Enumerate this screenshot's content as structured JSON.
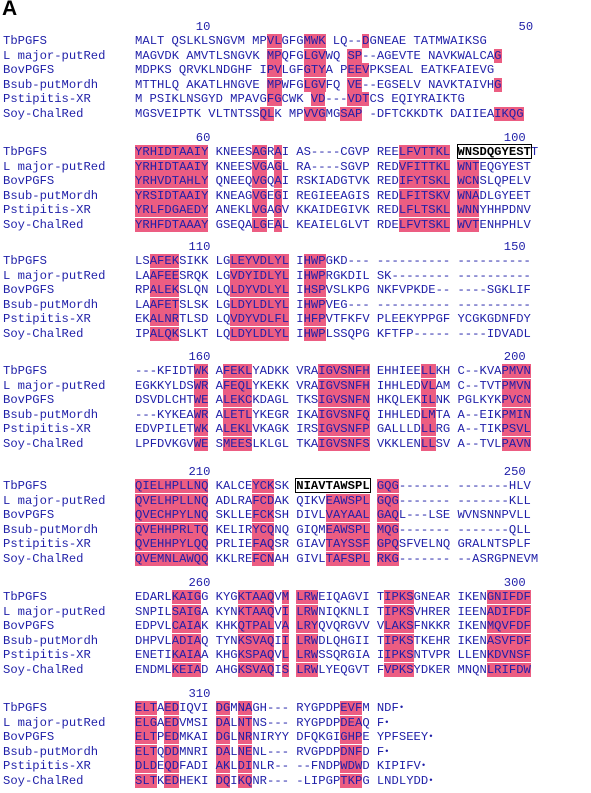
{
  "panel_label": "A",
  "names": [
    "TbPGFS",
    "L major-putRed",
    "BovPGFS",
    "Bsub-putMordh",
    "Pstipitis-XR",
    "Soy-ChalRed"
  ],
  "blocks": [
    {
      "ruler": [
        {
          "text": "10",
          "col": 9
        },
        {
          "text": "50",
          "col": 49
        }
      ],
      "rows": [
        "MALT QSLKLSNGVM MPVLGFGMWK LQ--DGNEAE TATMWAIKSG",
        "MAGVDK AMVTLSNGVK MPQFGLGVWQ SP--AGEVTE NAVKWALCAG",
        "MDPKS QRVKLNDGHF IPVLGFGTYA PEEVPKSEAL EATKFAIEVG",
        "MTTHLQ AKATLHNGVE MPWFGLGVFQ VE--EGSELV NAVKTAIVHG",
        "M PSIKLNSGYD MPAVGFGCWK VD---VDTCS EQIYRAIKTG",
        "MGSVEIPTK VLTNTSSQLK MPVVGMGSAP -DFTCKKDTK DAIIEAIKQG"
      ],
      "highlights": [
        [
          16,
          17,
          21,
          22,
          23,
          26,
          27,
          28,
          45,
          46,
          47,
          48
        ],
        [
          16,
          17,
          21,
          22,
          23,
          26,
          27,
          28,
          45,
          46,
          47,
          48
        ],
        [
          16,
          17,
          21,
          22,
          23,
          26,
          27,
          28,
          45,
          46,
          47,
          48
        ],
        [
          16,
          17,
          21,
          22,
          23,
          26,
          27,
          28,
          45,
          46,
          47,
          48
        ],
        [
          16,
          17,
          21,
          22,
          23,
          26,
          27,
          28,
          45,
          46,
          47,
          48
        ],
        [
          16,
          17,
          21,
          22,
          23,
          26,
          27,
          28,
          45,
          46,
          47,
          48
        ]
      ]
    },
    {
      "ruler": [
        {
          "text": "60",
          "col": 9
        },
        {
          "text": "100",
          "col": 48
        }
      ],
      "rows": [
        "YRHIDTAAIY KNEESAGRAI AS----CGVP REELFVTTKL WNSDQGYESTT",
        "YRHIDTAAIY KNEESVGAGL RA----SGVP REDVFITTKL WNTEQGYEST",
        "YRHVDTAHLY QNEEQVGQAI RSKIADGTVK REDIFYTSKL WCNSLQPELV",
        "YRSIDTAAIY KNEAGVGEGI REGIEEAGIS REDLFITSKV WNADLGYEET",
        "YRLFDGAEDY ANEKLVGAGV KKAIDEGIVK REDLFLTSKL WNNYHHPDNV",
        "YRHFDTAAAY GSEQALGEAL KEAIELGLVT RDELFVTSKL WVTENHPHLV"
      ],
      "highlights": [
        [
          0,
          1,
          2,
          3,
          4,
          5,
          6,
          7,
          8,
          9,
          15,
          16,
          18,
          33,
          34,
          35,
          36,
          37,
          38,
          39,
          40,
          41,
          42
        ],
        [
          0,
          1,
          2,
          3,
          4,
          5,
          6,
          7,
          8,
          9,
          15,
          16,
          18,
          33,
          34,
          35,
          36,
          37,
          38,
          39,
          40,
          41,
          42
        ],
        [
          0,
          1,
          2,
          3,
          4,
          5,
          6,
          7,
          8,
          9,
          15,
          16,
          18,
          33,
          34,
          35,
          36,
          37,
          38,
          39,
          40,
          41,
          42
        ],
        [
          0,
          1,
          2,
          3,
          4,
          5,
          6,
          7,
          8,
          9,
          15,
          16,
          18,
          33,
          34,
          35,
          36,
          37,
          38,
          39,
          40,
          41,
          42
        ],
        [
          0,
          1,
          2,
          3,
          4,
          5,
          6,
          7,
          8,
          9,
          15,
          16,
          18,
          33,
          34,
          35,
          36,
          37,
          38,
          39,
          40,
          41,
          42
        ],
        [
          0,
          1,
          2,
          3,
          4,
          5,
          6,
          7,
          8,
          9,
          15,
          16,
          18,
          33,
          34,
          35,
          36,
          37,
          38,
          39,
          40,
          41,
          42
        ]
      ]
    },
    {
      "ruler": [
        {
          "text": "110",
          "col": 9
        },
        {
          "text": "150",
          "col": 48
        }
      ],
      "rows": [
        "LSAFEKSIKK LGLEYVDLYL IHWPGKD--- ---------- ----------",
        "LAAFEESRQK LGVDYIDLYL IHWPRGKDIL SK-------- ----------",
        "RPALEKSLQN LQLDYVDLYL IHSPVSLKPG NKFVPKDE-- ----SGKLIF",
        "LAAFETSLSK LGLDYLDLYL IHWPVEG--- ---------- ----------",
        "EKALNRTLSD LQVDYVDLFL IHFPVTFKFV PLEEKYPPGF YCGKGDNFDY",
        "IPALQKSLKT LQLDYLDLYL IHWPLSSQPG KFTFP----- ----IDVADL"
      ],
      "highlights": [
        [
          2,
          3,
          4,
          5,
          12,
          13,
          14,
          15,
          16,
          17,
          18,
          19,
          21,
          22,
          23
        ],
        [
          2,
          3,
          4,
          5,
          12,
          13,
          14,
          15,
          16,
          17,
          18,
          19,
          21,
          22,
          23
        ],
        [
          2,
          3,
          4,
          5,
          12,
          13,
          14,
          15,
          16,
          17,
          18,
          19,
          21,
          22,
          23
        ],
        [
          2,
          3,
          4,
          5,
          12,
          13,
          14,
          15,
          16,
          17,
          18,
          19,
          21,
          22,
          23
        ],
        [
          2,
          3,
          4,
          5,
          12,
          13,
          14,
          15,
          16,
          17,
          18,
          19,
          21,
          22,
          23
        ],
        [
          2,
          3,
          4,
          5,
          12,
          13,
          14,
          15,
          16,
          17,
          18,
          19,
          21,
          22,
          23
        ]
      ]
    },
    {
      "ruler": [
        {
          "text": "160",
          "col": 9
        },
        {
          "text": "200",
          "col": 48
        }
      ],
      "rows": [
        "---KFIDTWK AFEKLYADKK VRAIGVSNFH EHHIEELLKH C--KVAPMVN",
        "EGKKYLDSWR AFEQLYKEKK VRAIGVSNFH IHHLEDVLAM C--TVTPMVN",
        "DSVDLCHTWE ALEKCKDAGL TKSIGVSNFN HKQLEKILNK PGLKYKPVCN",
        "---KYKEAWR ALETLYKEGR IKAIGVSNFQ IHHLEDLMTA A--EIKPMIN",
        "EDVPILETWK ALEKLVKAGK IRSIGVSNFP GALLLDLLRG A--TIKPSVL",
        "LPFDVKGVWE SMEESLKLGL TKAIGVSNFS VKKLENLLSV A--TVLPAVN"
      ],
      "highlights": [
        [
          8,
          9,
          11,
          12,
          13,
          14,
          23,
          24,
          25,
          26,
          27,
          28,
          29,
          36,
          37,
          46,
          47,
          48,
          49
        ],
        [
          8,
          9,
          11,
          12,
          13,
          14,
          23,
          24,
          25,
          26,
          27,
          28,
          29,
          36,
          37,
          46,
          47,
          48,
          49
        ],
        [
          8,
          9,
          11,
          12,
          13,
          14,
          23,
          24,
          25,
          26,
          27,
          28,
          29,
          36,
          37,
          46,
          47,
          48,
          49
        ],
        [
          8,
          9,
          11,
          12,
          13,
          14,
          23,
          24,
          25,
          26,
          27,
          28,
          29,
          36,
          37,
          46,
          47,
          48,
          49
        ],
        [
          8,
          9,
          11,
          12,
          13,
          14,
          23,
          24,
          25,
          26,
          27,
          28,
          29,
          36,
          37,
          46,
          47,
          48,
          49
        ],
        [
          8,
          9,
          11,
          12,
          13,
          14,
          23,
          24,
          25,
          26,
          27,
          28,
          29,
          36,
          37,
          46,
          47,
          48,
          49
        ]
      ]
    },
    {
      "ruler": [
        {
          "text": "210",
          "col": 9
        },
        {
          "text": "250",
          "col": 48
        }
      ],
      "rows": [
        "QIELHPLLNQ KALCEYCKSK NIAVTAWSPL GQG------- -------HLV",
        "QVELHPLLNQ ADLRAFCDAK QIKVEAWSPL GQG------- -------KLL",
        "QVECHPYLNQ SKLLEFCKSH DIVLVAYAAL GAQL---LSE WVNSNNPVLL",
        "QVEHHPRLTQ KELIRYCQNQ GIQMEAWSPL MQG------- -------QLL",
        "QVEHHPYLQQ PRLIEFAQSR GIAVTAYSSF GPQSFVELNQ GRALNTSPLF",
        "QVEMNLAWQQ KKLREFCNAH GIVLTAFSPL RKG------- --ASRGPNEVM"
      ],
      "highlights": [
        [
          0,
          1,
          2,
          3,
          4,
          5,
          6,
          7,
          8,
          9,
          15,
          16,
          17,
          24,
          25,
          26,
          27,
          28,
          29,
          30,
          31,
          32
        ],
        [
          0,
          1,
          2,
          3,
          4,
          5,
          6,
          7,
          8,
          9,
          15,
          16,
          17,
          24,
          25,
          26,
          27,
          28,
          29,
          30,
          31,
          32
        ],
        [
          0,
          1,
          2,
          3,
          4,
          5,
          6,
          7,
          8,
          9,
          15,
          16,
          17,
          24,
          25,
          26,
          27,
          28,
          29,
          30,
          31,
          32
        ],
        [
          0,
          1,
          2,
          3,
          4,
          5,
          6,
          7,
          8,
          9,
          15,
          16,
          17,
          24,
          25,
          26,
          27,
          28,
          29,
          30,
          31,
          32
        ],
        [
          0,
          1,
          2,
          3,
          4,
          5,
          6,
          7,
          8,
          9,
          15,
          16,
          17,
          24,
          25,
          26,
          27,
          28,
          29,
          30,
          31,
          32
        ],
        [
          0,
          1,
          2,
          3,
          4,
          5,
          6,
          7,
          8,
          9,
          15,
          16,
          17,
          24,
          25,
          26,
          27,
          28,
          29,
          30,
          31,
          32
        ]
      ]
    },
    {
      "ruler": [
        {
          "text": "260",
          "col": 9
        },
        {
          "text": "300",
          "col": 48
        }
      ],
      "rows": [
        "EDARLKAIGG KYGKTAAQVM LRWEIQAGVI TIPKSGNEAR IKENGNIFDF",
        "SNPILSAIGA KYNKTAAQVI LRWNIQKNLI TIPKSVHRER IEENADIFDF",
        "EDPVLCAIAK KHKQTPALVA LRYQVQRGVV VLAKSFNKKR IKENMQVFDF",
        "DHPVLADIAQ TYNKSVAQII LRWDLQHGII TIPKSTKEHR IKENASVFDF",
        "ENETIKAIAA KHGKSPAQVL LRWSSQRGIA IIPKSNTVPR LLENKDVNSF",
        "ENDMLKEIAD AHGKSVAQIS LRWLYEQGVT FVPKSYDKER MNQNLRIFDW"
      ],
      "highlights": [
        [
          5,
          6,
          7,
          8,
          13,
          14,
          15,
          16,
          17,
          19,
          20,
          21,
          22,
          31,
          32,
          33,
          34,
          44,
          45,
          46,
          47,
          48,
          49
        ],
        [
          5,
          6,
          7,
          8,
          13,
          14,
          15,
          16,
          17,
          19,
          20,
          21,
          22,
          31,
          32,
          33,
          34,
          44,
          45,
          46,
          47,
          48,
          49
        ],
        [
          5,
          6,
          7,
          8,
          13,
          14,
          15,
          16,
          17,
          19,
          20,
          21,
          22,
          31,
          32,
          33,
          34,
          44,
          45,
          46,
          47,
          48,
          49
        ],
        [
          5,
          6,
          7,
          8,
          13,
          14,
          15,
          16,
          17,
          19,
          20,
          21,
          22,
          31,
          32,
          33,
          34,
          44,
          45,
          46,
          47,
          48,
          49
        ],
        [
          5,
          6,
          7,
          8,
          13,
          14,
          15,
          16,
          17,
          19,
          20,
          21,
          22,
          31,
          32,
          33,
          34,
          44,
          45,
          46,
          47,
          48,
          49
        ],
        [
          5,
          6,
          7,
          8,
          13,
          14,
          15,
          16,
          17,
          19,
          20,
          21,
          22,
          31,
          32,
          33,
          34,
          44,
          45,
          46,
          47,
          48,
          49
        ]
      ]
    },
    {
      "ruler": [
        {
          "text": "310",
          "col": 9
        }
      ],
      "rows": [
        "ELTAEDIQVI DGMNAGH--- RYGPDPEVFM NDF•",
        "ELGAEDVMSI DALNTNS--- RYGPDPDEAQ F•",
        "ELTPEDMKAI DGLNRNIRYY DFQKGIGHPE YPFSEEY•",
        "ELTQDDMNRI DALNENL--- RVGPDPDNFD F•",
        "DLDEQDFADI AKLDINLR-- --FNDPWDWD KIPIFV•",
        "SLTKEDHEKI DQIKQNR--- -LIPGPTKPG LNDLYDD•"
      ],
      "highlights": [
        [
          0,
          1,
          2,
          4,
          5,
          10,
          11,
          13,
          14,
          26,
          27,
          28
        ],
        [
          0,
          1,
          2,
          4,
          5,
          10,
          11,
          13,
          14,
          26,
          27,
          28
        ],
        [
          0,
          1,
          2,
          4,
          5,
          10,
          11,
          13,
          14,
          26,
          27,
          28
        ],
        [
          0,
          1,
          2,
          4,
          5,
          10,
          11,
          13,
          14,
          26,
          27,
          28
        ],
        [
          0,
          1,
          2,
          4,
          5,
          10,
          11,
          13,
          14,
          26,
          27,
          28
        ],
        [
          0,
          1,
          2,
          4,
          5,
          10,
          11,
          13,
          14,
          26,
          27,
          28
        ]
      ]
    }
  ],
  "boxed_motifs": [
    {
      "block": 1,
      "row": 0,
      "from": 44,
      "to": 53
    },
    {
      "block": 4,
      "row": 0,
      "from": 22,
      "to": 31
    }
  ]
}
